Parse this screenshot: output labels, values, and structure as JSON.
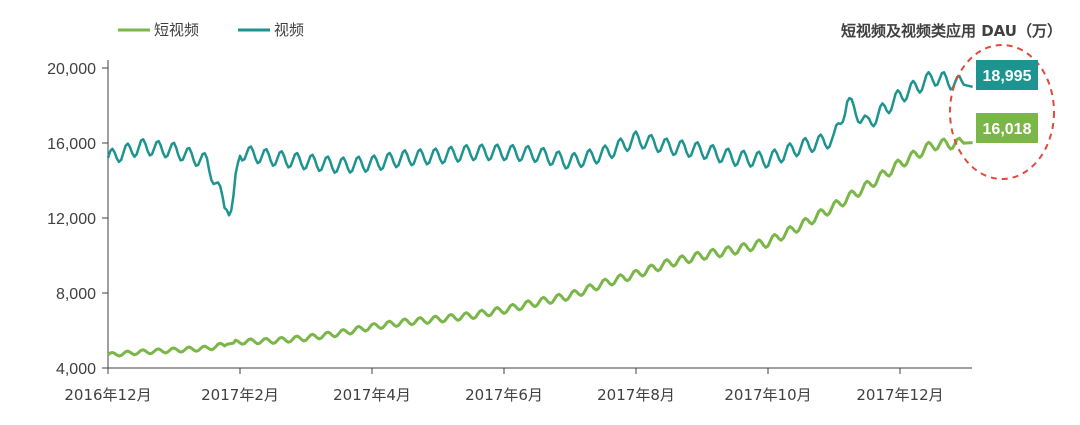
{
  "chart_data": {
    "type": "line",
    "title": "短视频及视频类应用 DAU（万）",
    "xlabel": "",
    "ylabel": "",
    "ylim": [
      4000,
      20000
    ],
    "yticks": [
      4000,
      8000,
      12000,
      16000,
      20000
    ],
    "ytick_labels": [
      "4,000",
      "8,000",
      "12,000",
      "16,000",
      "20,000"
    ],
    "xticks": [
      0,
      2,
      4,
      6,
      8,
      10,
      12
    ],
    "xtick_labels": [
      "2016年12月",
      "2017年2月",
      "2017年4月",
      "2017年6月",
      "2017年8月",
      "2017年10月",
      "2017年12月"
    ],
    "x_unit": "months since 2016年12月",
    "grid": false,
    "legend": "top-left",
    "series": [
      {
        "name": "短视频",
        "color": "#7ab648",
        "end_label": "16,018",
        "x": [
          0,
          0.5,
          1,
          1.5,
          2,
          2.5,
          3,
          3.5,
          4,
          4.5,
          5,
          5.5,
          6,
          6.5,
          7,
          7.5,
          8,
          8.5,
          9,
          9.5,
          10,
          10.5,
          11,
          11.5,
          12,
          12.5,
          13.1
        ],
        "values": [
          4700,
          4850,
          4950,
          5050,
          5400,
          5450,
          5600,
          5850,
          6200,
          6450,
          6600,
          6800,
          7100,
          7500,
          7850,
          8500,
          9000,
          9600,
          10000,
          10300,
          10700,
          11600,
          12600,
          13700,
          14900,
          15900,
          16018
        ]
      },
      {
        "name": "视频",
        "color": "#1e9490",
        "end_label": "18,995",
        "x": [
          0,
          0.5,
          1,
          1.5,
          1.85,
          2,
          2.5,
          3,
          3.5,
          4,
          4.5,
          5,
          5.5,
          6,
          6.5,
          7,
          7.5,
          8,
          8.5,
          9,
          9.5,
          10,
          10.5,
          11,
          11.2,
          11.5,
          12,
          12.5,
          13.1
        ],
        "values": [
          15200,
          15800,
          15600,
          15000,
          12000,
          15500,
          15200,
          15000,
          14800,
          14900,
          15200,
          15300,
          15500,
          15500,
          15400,
          15000,
          15400,
          16200,
          15800,
          15600,
          15200,
          15100,
          15800,
          16200,
          18200,
          17000,
          18500,
          19500,
          18995
        ]
      }
    ],
    "callout": "dashed red ellipse around end values"
  }
}
